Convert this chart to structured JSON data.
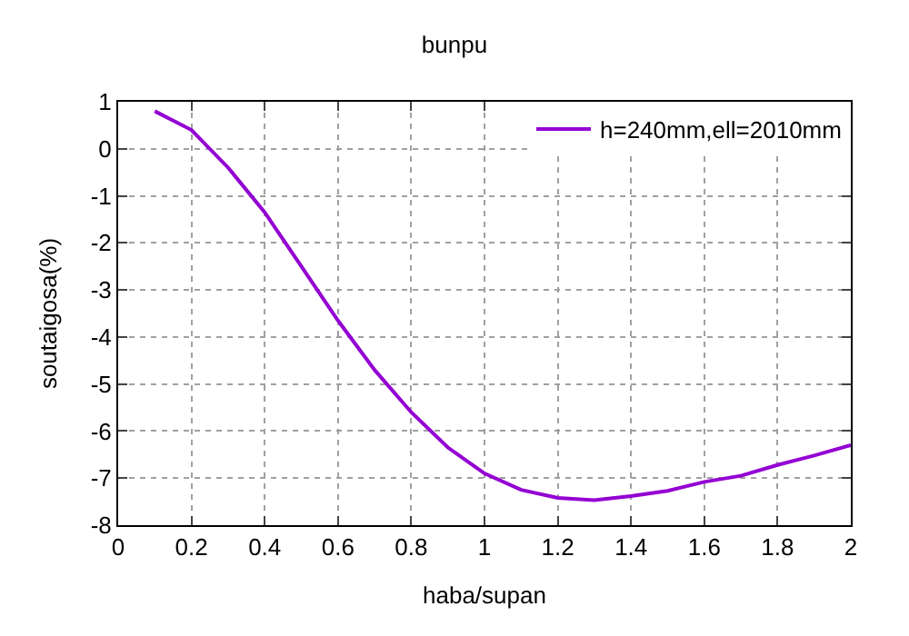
{
  "chart_data": {
    "type": "line",
    "title": "bunpu",
    "xlabel": "haba/supan",
    "ylabel": "soutaigosa(%)",
    "x": [
      0.1,
      0.2,
      0.3,
      0.4,
      0.5,
      0.6,
      0.7,
      0.8,
      0.9,
      1.0,
      1.1,
      1.2,
      1.3,
      1.4,
      1.5,
      1.6,
      1.7,
      1.8,
      1.9,
      2.0
    ],
    "series": [
      {
        "name": "h=240mm,ell=2010mm",
        "color": "#9400d3",
        "values": [
          0.8,
          0.4,
          -0.4,
          -1.35,
          -2.5,
          -3.65,
          -4.7,
          -5.6,
          -6.35,
          -6.9,
          -7.25,
          -7.42,
          -7.47,
          -7.38,
          -7.27,
          -7.08,
          -6.95,
          -6.72,
          -6.52,
          -6.3
        ]
      }
    ],
    "xlim": [
      0,
      2
    ],
    "xticks": [
      0,
      0.2,
      0.4,
      0.6,
      0.8,
      1,
      1.2,
      1.4,
      1.6,
      1.8,
      2
    ],
    "ylim": [
      -8,
      1
    ],
    "yticks": [
      -8,
      -7,
      -6,
      -5,
      -4,
      -3,
      -2,
      -1,
      0,
      1
    ],
    "grid": true,
    "legend": "top right",
    "marker": "none",
    "line_style": "solid"
  }
}
